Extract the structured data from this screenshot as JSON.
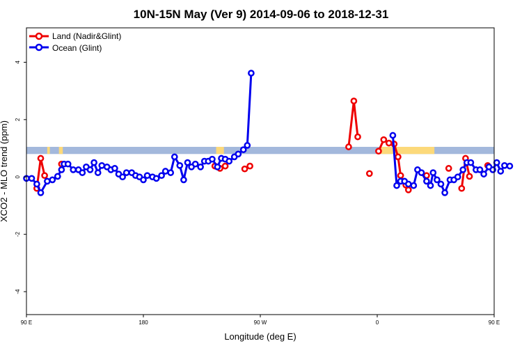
{
  "chart_data": {
    "type": "line",
    "title": "10N-15N May (Ver 9)   2014-09-06 to 2018-12-31",
    "xlabel": "Longitude (deg E)",
    "ylabel": "XCO2 - MLO trend (ppm)",
    "xlim": [
      90,
      450
    ],
    "ylim": [
      -4.8,
      5.2
    ],
    "x_ticks": [
      90,
      180,
      270,
      360,
      450,
      540
    ],
    "x_tick_labels": [
      "90 E",
      "180",
      "90 W",
      "0",
      "90 E",
      "180"
    ],
    "y_ticks": [
      -4,
      -2,
      0,
      2,
      4
    ],
    "y_tick_labels": [
      "-4",
      "-2",
      "0",
      "2",
      "4"
    ],
    "legend": {
      "position": "top-left"
    },
    "band": {
      "y_range": [
        0.8,
        1.05
      ],
      "color": "#a3b8dc",
      "land_color": "#fcd97a"
    },
    "land_mask": [
      [
        106,
        108
      ],
      [
        115,
        118
      ],
      [
        236,
        242
      ],
      [
        362,
        404
      ],
      [
        466,
        472
      ],
      [
        485,
        496
      ],
      [
        503,
        506
      ]
    ],
    "colors": {
      "land": "#ee0000",
      "ocean": "#0000ee"
    },
    "series": [
      {
        "name": "Land (Nadir&Glint)",
        "color": "#ee0000",
        "segments": [
          [
            [
              98,
              -0.4
            ],
            [
              101,
              0.65
            ],
            [
              104,
              0.05
            ]
          ],
          [
            [
              117,
              0.45
            ]
          ],
          [
            [
              235,
              0.38
            ],
            [
              239,
              0.3
            ],
            [
              243,
              0.38
            ]
          ],
          [
            [
              258,
              0.28
            ],
            [
              262,
              0.38
            ]
          ],
          [
            [
              338,
              1.05
            ],
            [
              342,
              2.65
            ],
            [
              345,
              1.4
            ]
          ],
          [
            [
              354,
              0.12
            ]
          ],
          [
            [
              361,
              0.9
            ],
            [
              365,
              1.3
            ],
            [
              369,
              1.18
            ],
            [
              373,
              1.15
            ],
            [
              376,
              0.7
            ],
            [
              378,
              0.05
            ],
            [
              382,
              -0.28
            ],
            [
              384,
              -0.45
            ]
          ],
          [
            [
              398,
              0.05
            ]
          ],
          [
            [
              415,
              0.3
            ]
          ],
          [
            [
              425,
              -0.4
            ],
            [
              428,
              0.65
            ],
            [
              431,
              0.02
            ]
          ],
          [
            [
              445,
              0.4
            ]
          ]
        ]
      },
      {
        "name": "Ocean (Glint)",
        "color": "#0000ee",
        "segments": [
          [
            [
              90,
              -0.05
            ],
            [
              94,
              -0.05
            ],
            [
              98,
              -0.25
            ],
            [
              101,
              -0.55
            ],
            [
              106,
              -0.15
            ],
            [
              110,
              -0.1
            ],
            [
              114,
              0.02
            ],
            [
              117,
              0.25
            ],
            [
              119,
              0.45
            ],
            [
              122,
              0.45
            ],
            [
              126,
              0.25
            ],
            [
              130,
              0.25
            ],
            [
              133,
              0.15
            ],
            [
              136,
              0.35
            ],
            [
              139,
              0.25
            ],
            [
              142,
              0.5
            ],
            [
              145,
              0.15
            ],
            [
              148,
              0.4
            ],
            [
              152,
              0.35
            ],
            [
              155,
              0.25
            ],
            [
              158,
              0.3
            ],
            [
              161,
              0.1
            ],
            [
              164,
              0.0
            ],
            [
              167,
              0.15
            ],
            [
              171,
              0.15
            ],
            [
              174,
              0.05
            ],
            [
              177,
              0.0
            ],
            [
              180,
              -0.1
            ],
            [
              183,
              0.05
            ],
            [
              187,
              0.0
            ],
            [
              190,
              -0.05
            ],
            [
              194,
              0.05
            ],
            [
              197,
              0.2
            ],
            [
              201,
              0.15
            ],
            [
              204,
              0.7
            ],
            [
              208,
              0.4
            ],
            [
              211,
              -0.1
            ],
            [
              214,
              0.5
            ],
            [
              217,
              0.35
            ],
            [
              220,
              0.45
            ],
            [
              224,
              0.35
            ],
            [
              227,
              0.55
            ],
            [
              230,
              0.55
            ],
            [
              233,
              0.62
            ],
            [
              237,
              0.35
            ],
            [
              240,
              0.65
            ],
            [
              243,
              0.62
            ],
            [
              246,
              0.55
            ],
            [
              250,
              0.7
            ],
            [
              253,
              0.8
            ],
            [
              257,
              0.95
            ],
            [
              260,
              1.1
            ],
            [
              263,
              3.62
            ]
          ],
          [
            [
              372,
              1.45
            ],
            [
              375,
              -0.3
            ],
            [
              378,
              -0.15
            ],
            [
              381,
              -0.15
            ],
            [
              384,
              -0.25
            ],
            [
              388,
              -0.3
            ],
            [
              391,
              0.25
            ],
            [
              394,
              0.15
            ],
            [
              398,
              -0.15
            ],
            [
              401,
              -0.3
            ],
            [
              403,
              0.15
            ],
            [
              406,
              -0.1
            ],
            [
              409,
              -0.25
            ],
            [
              412,
              -0.55
            ],
            [
              416,
              -0.1
            ],
            [
              419,
              -0.1
            ],
            [
              422,
              0.0
            ],
            [
              426,
              0.25
            ],
            [
              429,
              0.5
            ],
            [
              432,
              0.5
            ],
            [
              436,
              0.25
            ],
            [
              439,
              0.25
            ],
            [
              442,
              0.1
            ],
            [
              446,
              0.35
            ],
            [
              449,
              0.25
            ],
            [
              452,
              0.5
            ],
            [
              455,
              0.2
            ],
            [
              458,
              0.4
            ],
            [
              462,
              0.38
            ]
          ]
        ]
      }
    ]
  }
}
